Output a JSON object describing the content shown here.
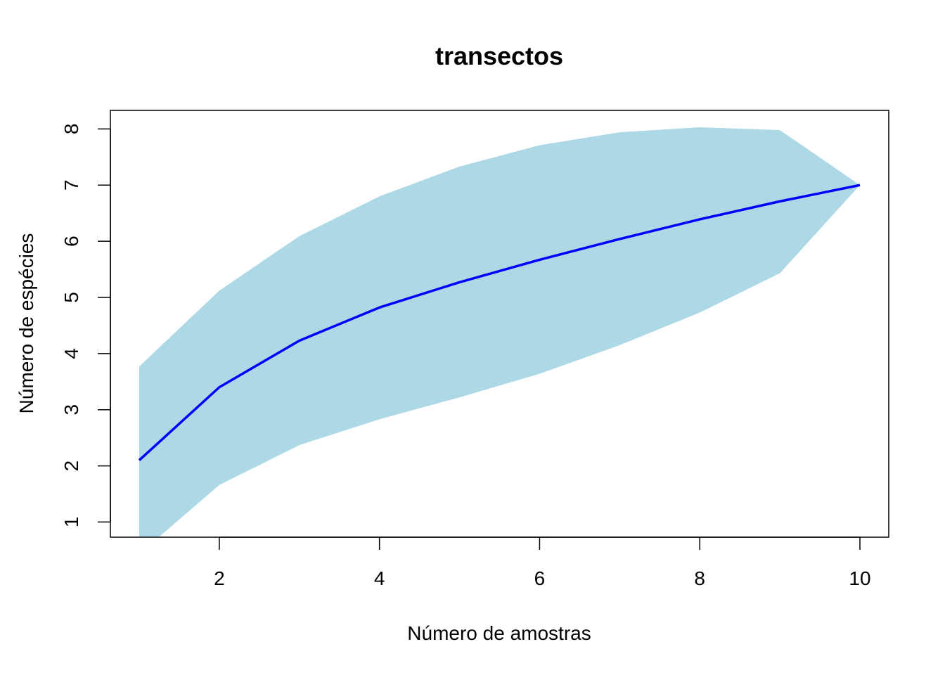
{
  "chart_data": {
    "type": "line",
    "title": "transectos",
    "xlabel": "Número de amostras",
    "ylabel": "Número de espécies",
    "x": [
      1,
      2,
      3,
      4,
      5,
      6,
      7,
      8,
      9,
      10
    ],
    "series": [
      {
        "values": [
          2.1,
          3.4,
          4.23,
          4.82,
          5.27,
          5.67,
          6.04,
          6.39,
          6.71,
          7.0
        ],
        "color": "#0000ff"
      }
    ],
    "confidence_band": {
      "upper": [
        3.77,
        5.12,
        6.09,
        6.8,
        7.33,
        7.71,
        7.94,
        8.03,
        7.98,
        7.0
      ],
      "lower": [
        0.43,
        1.66,
        2.37,
        2.83,
        3.22,
        3.64,
        4.15,
        4.73,
        5.43,
        7.0
      ],
      "color": "#add8e6"
    },
    "xlim": [
      0.64,
      10.36
    ],
    "ylim": [
      0.73,
      8.33
    ],
    "xticks": [
      2,
      4,
      6,
      8,
      10
    ],
    "yticks": [
      1,
      2,
      3,
      4,
      5,
      6,
      7,
      8
    ],
    "grid": false
  }
}
